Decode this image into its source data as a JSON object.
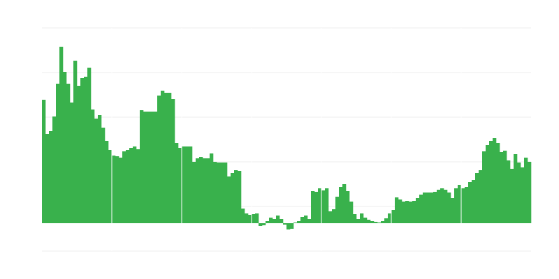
{
  "chart_data": {
    "type": "bar",
    "title": "",
    "xlabel": "",
    "ylabel": "",
    "ylim": [
      -40,
      280
    ],
    "grid": true,
    "gridlines": [
      -40,
      24,
      88,
      152,
      216,
      280
    ],
    "group_separator_every": 20,
    "colors": {
      "bar": "#39b14c",
      "grid": "#ececec",
      "background": "#ffffff"
    },
    "values": [
      177,
      128,
      132,
      153,
      200,
      253,
      217,
      200,
      173,
      233,
      197,
      208,
      210,
      223,
      163,
      150,
      155,
      137,
      118,
      105,
      97,
      96,
      94,
      103,
      105,
      108,
      110,
      106,
      162,
      160,
      160,
      160,
      160,
      183,
      190,
      187,
      187,
      178,
      115,
      108,
      110,
      110,
      110,
      88,
      93,
      95,
      93,
      93,
      100,
      88,
      87,
      87,
      87,
      67,
      72,
      76,
      75,
      21,
      14,
      12,
      13,
      14,
      -4,
      -3,
      3,
      8,
      6,
      11,
      6,
      -2,
      -9,
      -8,
      1,
      3,
      9,
      11,
      6,
      46,
      45,
      50,
      47,
      50,
      17,
      20,
      38,
      52,
      56,
      46,
      31,
      13,
      6,
      14,
      8,
      5,
      3,
      2,
      1,
      3,
      7,
      14,
      19,
      37,
      34,
      31,
      32,
      31,
      32,
      36,
      41,
      44,
      44,
      44,
      45,
      48,
      50,
      48,
      44,
      36,
      50,
      55,
      50,
      52,
      59,
      62,
      72,
      76,
      103,
      112,
      118,
      122,
      115,
      102,
      104,
      90,
      78,
      99,
      87,
      80,
      94,
      88
    ]
  }
}
